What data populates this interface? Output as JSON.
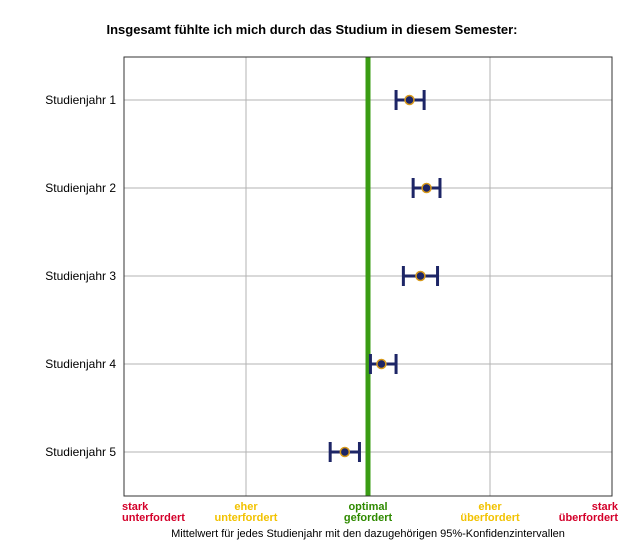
{
  "chart_data": {
    "type": "scatter",
    "subtype": "mean with 95% confidence intervals (horizontal)",
    "title": "Insgesamt fühlte ich mich durch das Studium in diesem Semester:",
    "xlabel": "Mittelwert für jedes Studienjahr mit den dazugehörigen 95%-Konfidenzintervallen",
    "ylabel": "",
    "xlim": [
      1,
      5
    ],
    "categories": [
      "Studienjahr 1",
      "Studienjahr 2",
      "Studienjahr 3",
      "Studienjahr 4",
      "Studienjahr 5"
    ],
    "series": [
      {
        "mean": [
          3.34,
          3.48,
          3.43,
          3.11,
          2.81
        ],
        "lower": [
          3.23,
          3.37,
          3.29,
          3.02,
          2.69
        ],
        "upper": [
          3.46,
          3.59,
          3.57,
          3.23,
          2.93
        ]
      }
    ],
    "x_ticks": [
      {
        "value": 1,
        "lines": [
          "stark",
          "unterfordert"
        ],
        "color": "#d4002a"
      },
      {
        "value": 2,
        "lines": [
          "eher",
          "unterfordert"
        ],
        "color": "#f2c200"
      },
      {
        "value": 3,
        "lines": [
          "optimal",
          "gefordert"
        ],
        "color": "#2f8a00"
      },
      {
        "value": 4,
        "lines": [
          "eher",
          "überfordert"
        ],
        "color": "#f2c200"
      },
      {
        "value": 5,
        "lines": [
          "stark",
          "überfordert"
        ],
        "color": "#d4002a"
      }
    ],
    "reference_line": {
      "value": 3,
      "color": "#3a9c13"
    },
    "grid": true,
    "colors": {
      "marker_fill": "#1d2566",
      "marker_edge": "#d89a1c",
      "whisker": "#1d2566",
      "grid": "#b3b3b3",
      "frame": "#333333"
    }
  }
}
